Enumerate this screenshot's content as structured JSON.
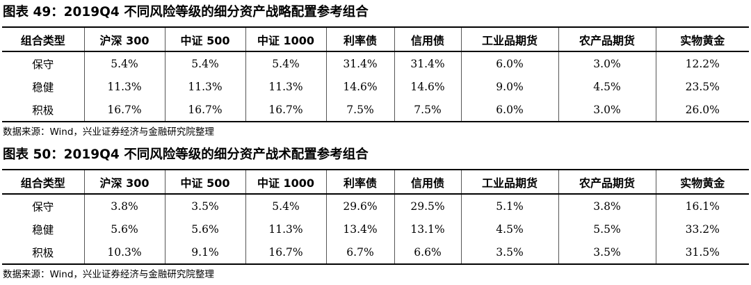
{
  "tables": [
    {
      "title": "图表 49：2019Q4 不同风险等级的细分资产战略配置参考组合",
      "headers": [
        "组合类型",
        "沪深 300",
        "中证 500",
        "中证 1000",
        "利率债",
        "信用债",
        "工业品期货",
        "农产品期货",
        "实物黄金"
      ],
      "rows": [
        [
          "保守",
          "5.4%",
          "5.4%",
          "5.4%",
          "31.4%",
          "31.4%",
          "6.0%",
          "3.0%",
          "12.2%"
        ],
        [
          "稳健",
          "11.3%",
          "11.3%",
          "11.3%",
          "14.6%",
          "14.6%",
          "9.0%",
          "4.5%",
          "23.5%"
        ],
        [
          "积极",
          "16.7%",
          "16.7%",
          "16.7%",
          "7.5%",
          "7.5%",
          "6.0%",
          "3.0%",
          "26.0%"
        ]
      ],
      "source": "数据来源：Wind，兴业证券经济与金融研究院整理"
    },
    {
      "title": "图表 50：2019Q4 不同风险等级的细分资产战术配置参考组合",
      "headers": [
        "组合类型",
        "沪深 300",
        "中证 500",
        "中证 1000",
        "利率债",
        "信用债",
        "工业品期货",
        "农产品期货",
        "实物黄金"
      ],
      "rows": [
        [
          "保守",
          "3.8%",
          "3.5%",
          "5.4%",
          "29.6%",
          "29.5%",
          "5.1%",
          "3.8%",
          "16.1%"
        ],
        [
          "稳健",
          "5.6%",
          "5.6%",
          "11.3%",
          "13.4%",
          "13.1%",
          "4.5%",
          "5.5%",
          "33.2%"
        ],
        [
          "积极",
          "10.3%",
          "9.1%",
          "16.7%",
          "6.7%",
          "6.6%",
          "3.5%",
          "3.5%",
          "31.5%"
        ]
      ],
      "source": "数据来源：Wind，兴业证券经济与金融研究院整理"
    }
  ]
}
